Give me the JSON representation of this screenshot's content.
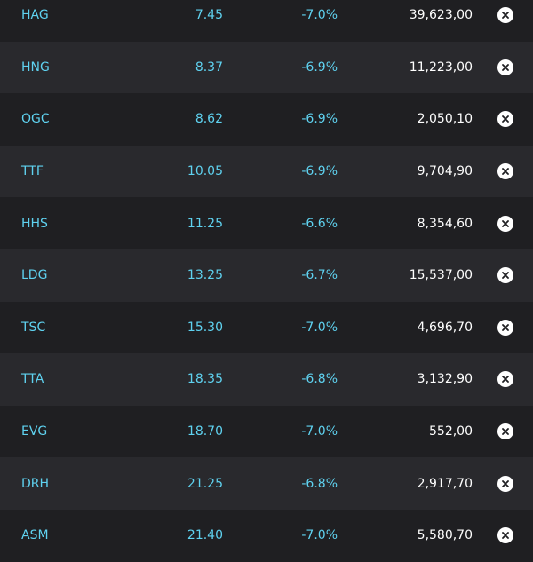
{
  "watchlist": {
    "rows": [
      {
        "symbol": "HAG",
        "price": "7.45",
        "change": "-7.0%",
        "volume": "39,623,00",
        "action_icon": "close-circle-icon"
      },
      {
        "symbol": "HNG",
        "price": "8.37",
        "change": "-6.9%",
        "volume": "11,223,00",
        "action_icon": "close-circle-icon"
      },
      {
        "symbol": "OGC",
        "price": "8.62",
        "change": "-6.9%",
        "volume": "2,050,10",
        "action_icon": "close-circle-icon"
      },
      {
        "symbol": "TTF",
        "price": "10.05",
        "change": "-6.9%",
        "volume": "9,704,90",
        "action_icon": "close-circle-icon"
      },
      {
        "symbol": "HHS",
        "price": "11.25",
        "change": "-6.6%",
        "volume": "8,354,60",
        "action_icon": "close-circle-icon"
      },
      {
        "symbol": "LDG",
        "price": "13.25",
        "change": "-6.7%",
        "volume": "15,537,00",
        "action_icon": "close-circle-icon"
      },
      {
        "symbol": "TSC",
        "price": "15.30",
        "change": "-7.0%",
        "volume": "4,696,70",
        "action_icon": "close-circle-icon"
      },
      {
        "symbol": "TTA",
        "price": "18.35",
        "change": "-6.8%",
        "volume": "3,132,90",
        "action_icon": "close-circle-icon"
      },
      {
        "symbol": "EVG",
        "price": "18.70",
        "change": "-7.0%",
        "volume": "552,00",
        "action_icon": "close-circle-icon"
      },
      {
        "symbol": "DRH",
        "price": "21.25",
        "change": "-6.8%",
        "volume": "2,917,70",
        "action_icon": "close-circle-icon"
      },
      {
        "symbol": "ASM",
        "price": "21.40",
        "change": "-7.0%",
        "volume": "5,580,70",
        "action_icon": "close-circle-icon"
      }
    ]
  },
  "colors": {
    "background": "#1f1f22",
    "row_alt": "#29292d",
    "accent": "#5fd2f0",
    "value_text": "#ffffff"
  }
}
